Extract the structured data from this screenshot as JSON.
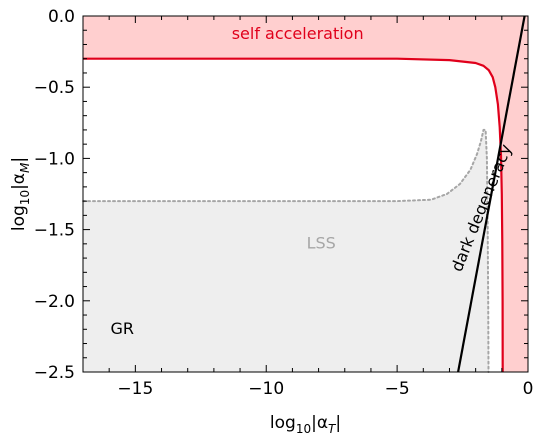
{
  "chart_data": {
    "type": "line",
    "title": "",
    "xlabel": {
      "prefix": "log",
      "sub1": "10",
      "mid": "|α",
      "sub2": "T",
      "suffix": "|"
    },
    "ylabel": {
      "prefix": "log",
      "sub1": "10",
      "mid": "|α",
      "sub2": "M",
      "suffix": "|"
    },
    "xlim": [
      -17,
      0
    ],
    "ylim": [
      -2.5,
      0
    ],
    "x_ticks": [
      -15,
      -10,
      -5,
      0
    ],
    "y_ticks": [
      0.0,
      -0.5,
      -1.0,
      -1.5,
      -2.0,
      -2.5
    ],
    "x_tick_labels": [
      "−15",
      "−10",
      "−5",
      "0"
    ],
    "y_tick_labels": [
      "0.0",
      "−0.5",
      "−1.0",
      "−1.5",
      "−2.0",
      "−2.5"
    ],
    "grid": false,
    "series": [
      {
        "name": "self acceleration",
        "style": "solid",
        "color": "#e0001b",
        "fill": "#ffcfcf",
        "x": [
          -17,
          -10,
          -5,
          -3,
          -2,
          -1.7,
          -1.5,
          -1.35,
          -1.25,
          -1.15,
          -1.08,
          -1.03,
          -1.0,
          -0.98,
          -0.97,
          -0.965
        ],
        "y": [
          -0.3,
          -0.3,
          -0.3,
          -0.31,
          -0.33,
          -0.35,
          -0.38,
          -0.43,
          -0.5,
          -0.62,
          -0.78,
          -0.98,
          -1.25,
          -1.6,
          -2.0,
          -2.5
        ]
      },
      {
        "name": "LSS",
        "style": "dotted",
        "color": "#a6a6a6",
        "fill": "#eeeeee",
        "x": [
          -17,
          -10,
          -5,
          -3.7,
          -3.1,
          -2.6,
          -2.2,
          -1.95,
          -1.8,
          -1.7,
          -1.62,
          -1.57,
          -1.54,
          -1.52,
          -1.51
        ],
        "y": [
          -1.3,
          -1.3,
          -1.3,
          -1.29,
          -1.25,
          -1.18,
          -1.08,
          -0.97,
          -0.88,
          -0.8,
          -0.8,
          -1.0,
          -1.5,
          -2.0,
          -2.5
        ]
      },
      {
        "name": "dark degeneracy",
        "style": "solid",
        "color": "#000000",
        "x": [
          -2.67,
          -0.13
        ],
        "y": [
          -2.5,
          0.0
        ]
      }
    ],
    "annotations": [
      {
        "text": "self acceleration",
        "x": -8.8,
        "y": -0.13,
        "color": "#e0001b",
        "rotate": 0
      },
      {
        "text": "LSS",
        "x": -7.9,
        "y": -1.6,
        "color": "#a6a6a6",
        "rotate": 0
      },
      {
        "text": "GR",
        "x": -15.5,
        "y": -2.2,
        "color": "#000000",
        "rotate": 0
      },
      {
        "text": "dark degeneracy",
        "x": -1.75,
        "y": -1.35,
        "color": "#000000",
        "rotate": -68
      }
    ]
  }
}
